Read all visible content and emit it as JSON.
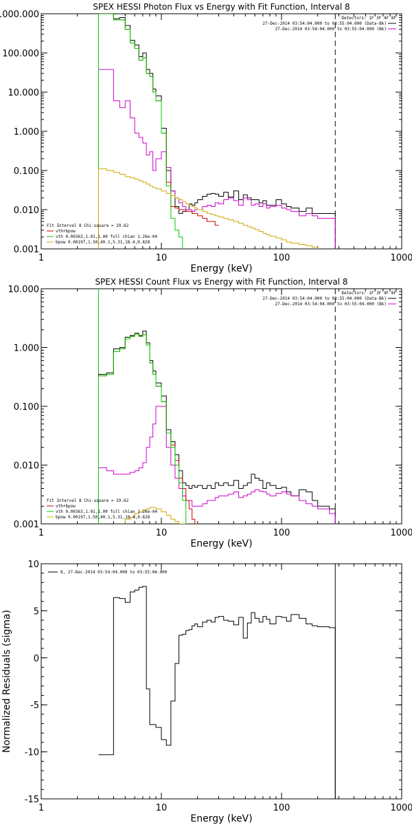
{
  "colors": {
    "background": "#ffffff",
    "axis": "#000000",
    "data": "#000000",
    "model": "#cc00cc",
    "total": "#cc0000",
    "vth": "#00cc00",
    "bpow": "#ccaa00"
  },
  "chart_data": [
    {
      "type": "line",
      "title": "SPEX HESSI Photon Flux vs Energy with Fit Function, Interval 8",
      "xlabel": "Energy (keV)",
      "ylabel": "",
      "xscale": "log",
      "yscale": "log",
      "xlim": [
        1,
        1000
      ],
      "ylim": [
        0.001,
        1000
      ],
      "xticks": [
        "1",
        "10",
        "100",
        "1000"
      ],
      "yticks": [
        "0.001",
        "0.010",
        "0.100",
        "1.000",
        "10.000",
        "100.000",
        "1000.000"
      ],
      "legend_top": [
        "Detectors: 1F 3F 4F 8F",
        "27-Dec-2014 03:54:04.000 to 03:55:04.000 (Data-Bk)",
        "27-Dec-2014 03:54:04.000 to 03:55:04.000 (Bk)"
      ],
      "legend_bottom": [
        "Fit Interval 8   Chi-square = 29.62",
        "vth+bpow",
        "vth 0.00363,1.01,1.00  full chian 1.26e-04",
        "bpow 0.00197,1.50,40.1,5.31,18.4,0.828"
      ],
      "series": [
        {
          "name": "27-Dec-2014 03:54:04.000 to 03:55:04.000 (Data-Bk)",
          "color": "#000000",
          "edges": [
            3,
            3.5,
            4,
            4.5,
            5,
            5.5,
            6,
            6.5,
            7,
            7.5,
            8,
            8.5,
            9,
            10,
            11,
            12,
            13,
            14,
            15,
            16,
            17,
            18,
            19,
            20,
            22,
            24,
            26,
            28,
            30,
            33,
            36,
            40,
            44,
            48,
            52,
            56,
            60,
            65,
            70,
            75,
            80,
            90,
            100,
            110,
            120,
            140,
            160,
            180,
            200,
            250,
            280
          ],
          "values": [
            1000,
            1000,
            750,
            800,
            500,
            210,
            160,
            80,
            100,
            38,
            30,
            12,
            8,
            1.2,
            0.1,
            0.03,
            0.012,
            0.008,
            0.009,
            0.01,
            0.014,
            0.013,
            0.015,
            0.018,
            0.022,
            0.025,
            0.026,
            0.025,
            0.022,
            0.028,
            0.021,
            0.03,
            0.018,
            0.024,
            0.02,
            0.018,
            0.018,
            0.015,
            0.017,
            0.013,
            0.013,
            0.018,
            0.014,
            0.012,
            0.011,
            0.009,
            0.011,
            0.008,
            0.008,
            0.008
          ]
        },
        {
          "name": "27-Dec-2014 03:54:04.000 to 03:55:04.000 (Bk)",
          "color": "#cc00cc",
          "edges": [
            3,
            3.5,
            4,
            4.5,
            5,
            5.5,
            6,
            6.5,
            7,
            7.5,
            8,
            8.5,
            9,
            10,
            11,
            12,
            13,
            14,
            15,
            16,
            17,
            18,
            19,
            20,
            22,
            24,
            26,
            28,
            30,
            33,
            36,
            40,
            44,
            48,
            52,
            56,
            60,
            65,
            70,
            75,
            80,
            90,
            100,
            110,
            120,
            140,
            160,
            180,
            200,
            250,
            280
          ],
          "values": [
            38,
            38,
            6,
            4,
            6,
            2.2,
            0.9,
            0.7,
            0.5,
            0.25,
            0.3,
            0.1,
            0.2,
            0.3,
            0.12,
            0.03,
            0.02,
            0.015,
            0.012,
            0.01,
            0.01,
            0.009,
            0.01,
            0.01,
            0.012,
            0.013,
            0.012,
            0.015,
            0.014,
            0.018,
            0.02,
            0.017,
            0.013,
            0.02,
            0.018,
            0.013,
            0.014,
            0.012,
            0.014,
            0.011,
            0.012,
            0.013,
            0.011,
            0.01,
            0.009,
            0.007,
            0.008,
            0.007,
            0.006,
            0.006
          ]
        },
        {
          "name": "vth+bpow",
          "color": "#cc0000",
          "edges": [
            3,
            3.5,
            4,
            4.5,
            5,
            5.5,
            6,
            6.5,
            7,
            7.5,
            8,
            8.5,
            9,
            10,
            11,
            12,
            13,
            14,
            15,
            16,
            17,
            18,
            19,
            20,
            22,
            24,
            26,
            28,
            30
          ],
          "values": [
            1000,
            1000,
            700,
            700,
            400,
            180,
            130,
            65,
            75,
            30,
            25,
            10,
            6,
            0.9,
            0.05,
            0.012,
            0.011,
            0.01,
            0.01,
            0.009,
            0.009,
            0.008,
            0.008,
            0.007,
            0.006,
            0.005,
            0.005,
            0.004,
            0.004
          ]
        },
        {
          "name": "vth 0.00363,1.01,1.00  full chian 1.26e-04",
          "color": "#00cc00",
          "edges": [
            3,
            3.5,
            4,
            4.5,
            5,
            5.5,
            6,
            6.5,
            7,
            7.5,
            8,
            8.5,
            9,
            10,
            11,
            12,
            13,
            14,
            15
          ],
          "values": [
            1000,
            1000,
            700,
            700,
            400,
            180,
            130,
            65,
            75,
            30,
            25,
            10,
            6,
            0.9,
            0.04,
            0.006,
            0.003,
            0.002,
            0.0009
          ]
        },
        {
          "name": "bpow 0.00197,1.50,40.1,5.31,18.4,0.828",
          "color": "#ccaa00",
          "edges": [
            3,
            3.5,
            4,
            4.5,
            5,
            5.5,
            6,
            6.5,
            7,
            7.5,
            8,
            8.5,
            9,
            10,
            11,
            12,
            13,
            14,
            15,
            16,
            17,
            18,
            19,
            20,
            22,
            24,
            26,
            28,
            30,
            33,
            36,
            40,
            44,
            48,
            52,
            56,
            60,
            65,
            70,
            75,
            80,
            90,
            100,
            110,
            120,
            140,
            160,
            180,
            200
          ],
          "values": [
            0.11,
            0.1,
            0.09,
            0.08,
            0.07,
            0.065,
            0.06,
            0.055,
            0.05,
            0.045,
            0.04,
            0.037,
            0.034,
            0.03,
            0.026,
            0.023,
            0.02,
            0.018,
            0.016,
            0.014,
            0.013,
            0.012,
            0.011,
            0.01,
            0.009,
            0.008,
            0.0075,
            0.007,
            0.0065,
            0.006,
            0.0055,
            0.005,
            0.0045,
            0.004,
            0.0037,
            0.0034,
            0.0031,
            0.0028,
            0.0025,
            0.0023,
            0.0021,
            0.0019,
            0.0017,
            0.0015,
            0.0014,
            0.0013,
            0.0012,
            0.0011,
            0.001
          ]
        }
      ],
      "vlines": [
        {
          "x": 3,
          "color": "#00cc00"
        },
        {
          "x": 3,
          "color": "#ccaa00"
        },
        {
          "x": 280,
          "color": "#000000",
          "style": "dashed"
        }
      ]
    },
    {
      "type": "line",
      "title": "SPEX HESSI Count Flux vs Energy with Fit Function, Interval 8",
      "xlabel": "Energy (keV)",
      "ylabel": "",
      "xscale": "log",
      "yscale": "log",
      "xlim": [
        1,
        1000
      ],
      "ylim": [
        0.001,
        10
      ],
      "xticks": [
        "1",
        "10",
        "100",
        "1000"
      ],
      "yticks": [
        "0.001",
        "0.010",
        "0.100",
        "1.000",
        "10.000"
      ],
      "legend_top": [
        "Detectors: 1F 3F 4F 8F",
        "27-Dec-2014 03:54:04.000 to 03:55:04.000 (Data-Bk)",
        "27-Dec-2014 03:54:04.000 to 03:55:04.000 (Bk)"
      ],
      "legend_bottom": [
        "Fit Interval 8   Chi-square = 29.62",
        "vth+bpow",
        "vth 0.00363,1.01,1.00  full chian 1.26e-04",
        "bpow 0.00197,1.50,40.1,5.31,18.4,0.828"
      ],
      "series": [
        {
          "name": "27-Dec-2014 03:54:04.000 to 03:55:04.000 (Data-Bk)",
          "color": "#000000",
          "edges": [
            3,
            3.5,
            4,
            4.5,
            5,
            5.5,
            6,
            6.5,
            7,
            7.5,
            8,
            8.5,
            9,
            10,
            11,
            12,
            13,
            14,
            15,
            16,
            17,
            18,
            19,
            20,
            22,
            24,
            26,
            28,
            30,
            33,
            36,
            40,
            44,
            48,
            52,
            56,
            60,
            65,
            70,
            75,
            80,
            90,
            100,
            110,
            120,
            140,
            160,
            180,
            200,
            250,
            280
          ],
          "values": [
            0.35,
            0.37,
            0.95,
            1.0,
            1.5,
            1.6,
            1.75,
            1.6,
            1.9,
            1.2,
            0.6,
            0.4,
            0.25,
            0.15,
            0.04,
            0.025,
            0.015,
            0.008,
            0.005,
            0.0045,
            0.004,
            0.0045,
            0.0042,
            0.0045,
            0.004,
            0.0045,
            0.004,
            0.005,
            0.0045,
            0.005,
            0.0045,
            0.0055,
            0.004,
            0.0045,
            0.005,
            0.007,
            0.006,
            0.0055,
            0.004,
            0.005,
            0.0045,
            0.004,
            0.0042,
            0.0035,
            0.003,
            0.0038,
            0.0035,
            0.0025,
            0.002,
            0.0018
          ]
        },
        {
          "name": "27-Dec-2014 03:54:04.000 to 03:55:04.000 (Bk)",
          "color": "#cc00cc",
          "edges": [
            3,
            3.5,
            4,
            4.5,
            5,
            5.5,
            6,
            6.5,
            7,
            7.5,
            8,
            8.5,
            9,
            10,
            11,
            12,
            13,
            14,
            15,
            16,
            17,
            18,
            19,
            20,
            22,
            24,
            26,
            28,
            30,
            33,
            36,
            40,
            44,
            48,
            52,
            56,
            60,
            65,
            70,
            75,
            80,
            90,
            100,
            110,
            120,
            140,
            160,
            180,
            200,
            250,
            280
          ],
          "values": [
            0.009,
            0.008,
            0.007,
            0.007,
            0.007,
            0.0075,
            0.008,
            0.009,
            0.011,
            0.02,
            0.03,
            0.05,
            0.1,
            0.1,
            0.02,
            0.01,
            0.006,
            0.004,
            0.003,
            0.0025,
            0.0025,
            0.002,
            0.002,
            0.002,
            0.0022,
            0.0025,
            0.0025,
            0.0028,
            0.003,
            0.003,
            0.0032,
            0.0035,
            0.0028,
            0.003,
            0.0032,
            0.0035,
            0.0038,
            0.0036,
            0.0035,
            0.0032,
            0.003,
            0.0033,
            0.0035,
            0.0032,
            0.003,
            0.0025,
            0.0022,
            0.002,
            0.0018,
            0.0015
          ]
        },
        {
          "name": "vth+bpow",
          "color": "#cc0000",
          "edges": [
            3,
            3.5,
            4,
            4.5,
            5,
            5.5,
            6,
            6.5,
            7,
            7.5,
            8,
            8.5,
            9,
            10,
            11,
            12,
            13,
            14,
            15,
            16,
            17,
            18,
            19,
            20
          ],
          "values": [
            0.33,
            0.35,
            0.85,
            0.95,
            1.4,
            1.55,
            1.7,
            1.55,
            1.65,
            1.1,
            0.55,
            0.35,
            0.22,
            0.12,
            0.035,
            0.022,
            0.012,
            0.006,
            0.004,
            0.0025,
            0.0018,
            0.0012,
            0.001
          ]
        },
        {
          "name": "vth 0.00363,1.01,1.00  full chian 1.26e-04",
          "color": "#00cc00",
          "edges": [
            3,
            3.5,
            4,
            4.5,
            5,
            5.5,
            6,
            6.5,
            7,
            7.5,
            8,
            8.5,
            9,
            10,
            11,
            12,
            13,
            14,
            15,
            16
          ],
          "values": [
            0.33,
            0.35,
            0.85,
            0.95,
            1.4,
            1.55,
            1.7,
            1.55,
            1.65,
            1.1,
            0.55,
            0.35,
            0.22,
            0.12,
            0.035,
            0.02,
            0.01,
            0.005,
            0.0025
          ]
        },
        {
          "name": "bpow 0.00197,1.50,40.1,5.31,18.4,0.828",
          "color": "#ccaa00",
          "edges": [
            5,
            5.5,
            6,
            6.5,
            7,
            7.5,
            8,
            8.5,
            9,
            10,
            11,
            12,
            13,
            14,
            15,
            16
          ],
          "values": [
            0.0012,
            0.0013,
            0.0015,
            0.0016,
            0.0017,
            0.0018,
            0.0019,
            0.0019,
            0.0018,
            0.0016,
            0.0014,
            0.0012,
            0.0011,
            0.001,
            0.001
          ]
        }
      ],
      "vlines": [
        {
          "x": 3,
          "color": "#000000",
          "style": "dotted"
        },
        {
          "x": 3,
          "color": "#00cc00"
        },
        {
          "x": 280,
          "color": "#000000",
          "style": "dashed"
        }
      ]
    },
    {
      "type": "line",
      "title": "",
      "xlabel": "Energy (keV)",
      "ylabel": "Normalized Residuals (sigma)",
      "xscale": "log",
      "yscale": "linear",
      "xlim": [
        1,
        1000
      ],
      "ylim": [
        -15,
        10
      ],
      "xticks": [
        "1",
        "10",
        "100",
        "1000"
      ],
      "yticks": [
        "-15",
        "-10",
        "-5",
        "0",
        "5",
        "10"
      ],
      "legend_top": [
        "8, 27-Dec-2014 03:54:04.000 to 03:55:04.000"
      ],
      "series": [
        {
          "name": "8, 27-Dec-2014 03:54:04.000 to 03:55:04.000",
          "color": "#000000",
          "edges": [
            3,
            4,
            4.5,
            5,
            5.5,
            6,
            6.5,
            7,
            7.5,
            8,
            9,
            10,
            11,
            12,
            13,
            14,
            15,
            16,
            17,
            18,
            19,
            20,
            22,
            24,
            26,
            28,
            30,
            33,
            36,
            40,
            44,
            48,
            52,
            56,
            60,
            65,
            70,
            75,
            80,
            90,
            100,
            110,
            120,
            140,
            160,
            180,
            200,
            250,
            280
          ],
          "values": [
            -10.3,
            6.4,
            6.3,
            5.9,
            7.0,
            7.2,
            7.5,
            7.6,
            -3.3,
            -7.1,
            -7.4,
            -8.7,
            -9.3,
            -4.6,
            -0.6,
            2.4,
            2.5,
            2.9,
            3.0,
            3.4,
            3.6,
            3.3,
            3.8,
            4.0,
            3.8,
            4.3,
            4.4,
            4.0,
            3.9,
            3.5,
            4.3,
            2.1,
            3.7,
            4.8,
            4.2,
            3.8,
            4.4,
            4.1,
            3.6,
            4.4,
            4.3,
            3.9,
            4.6,
            4.2,
            3.6,
            3.4,
            3.3,
            3.2
          ]
        }
      ],
      "vlines": [
        {
          "x": 280,
          "color": "#000000",
          "style": "solid"
        }
      ]
    }
  ]
}
